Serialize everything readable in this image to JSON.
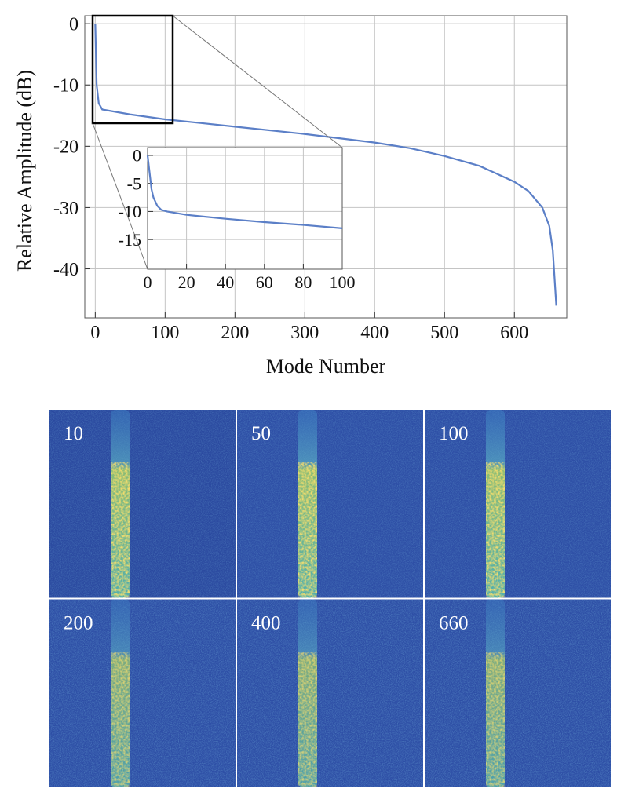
{
  "chart_data": [
    {
      "type": "line",
      "x_label": "Mode Number",
      "y_label": "Relative Amplitude (dB)",
      "x": [
        0,
        1,
        2,
        5,
        10,
        50,
        100,
        200,
        300,
        400,
        450,
        500,
        550,
        600,
        620,
        640,
        650,
        655,
        660
      ],
      "values": [
        0,
        -5,
        -10,
        -13,
        -14,
        -14.8,
        -15.6,
        -16.8,
        -18,
        -19.4,
        -20.3,
        -21.6,
        -23.2,
        -25.8,
        -27.3,
        -30,
        -33,
        -37,
        -46
      ],
      "color": "#5b7fc7",
      "xlim": [
        -15,
        675
      ],
      "ylim": [
        -48,
        1.3
      ],
      "xticks": [
        0,
        100,
        200,
        300,
        400,
        500,
        600
      ],
      "yticks": [
        0,
        -10,
        -20,
        -30,
        -40
      ],
      "grid": true
    },
    {
      "type": "line",
      "x": [
        0,
        1,
        2,
        3,
        5,
        7,
        10,
        20,
        40,
        60,
        80,
        100
      ],
      "values": [
        0,
        -3,
        -6,
        -7.5,
        -9,
        -9.7,
        -10,
        -10.6,
        -11.3,
        -11.9,
        -12.4,
        -13
      ],
      "color": "#5b7fc7",
      "xlim": [
        0,
        100
      ],
      "ylim": [
        -20.3,
        1.4
      ],
      "xticks": [
        0,
        20,
        40,
        60,
        80,
        100
      ],
      "yticks": [
        0,
        -5,
        -10,
        -15
      ],
      "grid": true
    }
  ],
  "panels": {
    "labels": [
      "10",
      "50",
      "100",
      "200",
      "400",
      "660"
    ]
  }
}
